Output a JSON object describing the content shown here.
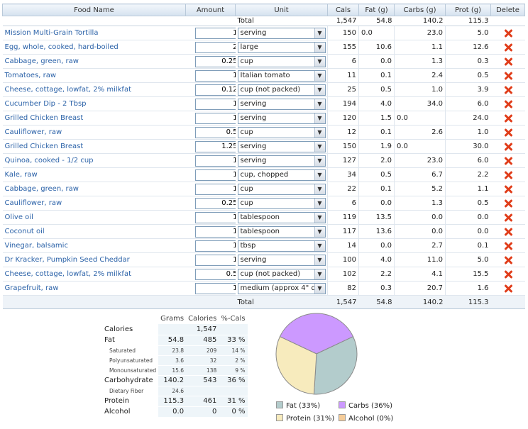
{
  "headers": {
    "food_name": "Food Name",
    "amount": "Amount",
    "unit": "Unit",
    "cals": "Cals",
    "fat": "Fat (g)",
    "carbs": "Carbs (g)",
    "prot": "Prot (g)",
    "delete": "Delete"
  },
  "totals": {
    "label": "Total",
    "cals": "1,547",
    "fat": "54.8",
    "carbs": "140.2",
    "prot": "115.3"
  },
  "foods": [
    {
      "name": "Mission Multi-Grain Tortilla",
      "amount": "1",
      "unit": "serving",
      "cals": "150",
      "fat": "0.0",
      "fat_left": true,
      "carbs": "23.0",
      "carbs_left": false,
      "prot": "5.0"
    },
    {
      "name": "Egg, whole, cooked, hard-boiled",
      "amount": "2",
      "unit": "large",
      "cals": "155",
      "fat": "10.6",
      "fat_left": false,
      "carbs": "1.1",
      "carbs_left": false,
      "prot": "12.6"
    },
    {
      "name": "Cabbage, green, raw",
      "amount": "0.25",
      "unit": "cup",
      "cals": "6",
      "fat": "0.0",
      "fat_left": false,
      "carbs": "1.3",
      "carbs_left": false,
      "prot": "0.3"
    },
    {
      "name": "Tomatoes, raw",
      "amount": "1",
      "unit": "Italian tomato",
      "cals": "11",
      "fat": "0.1",
      "fat_left": false,
      "carbs": "2.4",
      "carbs_left": false,
      "prot": "0.5"
    },
    {
      "name": "Cheese, cottage, lowfat, 2% milkfat",
      "amount": "0.12",
      "unit": "cup (not packed)",
      "cals": "25",
      "fat": "0.5",
      "fat_left": false,
      "carbs": "1.0",
      "carbs_left": false,
      "prot": "3.9"
    },
    {
      "name": "Cucumber Dip - 2 Tbsp",
      "amount": "1",
      "unit": "serving",
      "cals": "194",
      "fat": "4.0",
      "fat_left": false,
      "carbs": "34.0",
      "carbs_left": false,
      "prot": "6.0"
    },
    {
      "name": "Grilled Chicken Breast",
      "amount": "1",
      "unit": "serving",
      "cals": "120",
      "fat": "1.5",
      "fat_left": false,
      "carbs": "0.0",
      "carbs_left": true,
      "prot": "24.0"
    },
    {
      "name": "Cauliflower, raw",
      "amount": "0.5",
      "unit": "cup",
      "cals": "12",
      "fat": "0.1",
      "fat_left": false,
      "carbs": "2.6",
      "carbs_left": false,
      "prot": "1.0"
    },
    {
      "name": "Grilled Chicken Breast",
      "amount": "1.25",
      "unit": "serving",
      "cals": "150",
      "fat": "1.9",
      "fat_left": false,
      "carbs": "0.0",
      "carbs_left": true,
      "prot": "30.0"
    },
    {
      "name": "Quinoa, cooked - 1/2 cup",
      "amount": "1",
      "unit": "serving",
      "cals": "127",
      "fat": "2.0",
      "fat_left": false,
      "carbs": "23.0",
      "carbs_left": false,
      "prot": "6.0"
    },
    {
      "name": "Kale, raw",
      "amount": "1",
      "unit": "cup, chopped",
      "cals": "34",
      "fat": "0.5",
      "fat_left": false,
      "carbs": "6.7",
      "carbs_left": false,
      "prot": "2.2"
    },
    {
      "name": "Cabbage, green, raw",
      "amount": "1",
      "unit": "cup",
      "cals": "22",
      "fat": "0.1",
      "fat_left": false,
      "carbs": "5.2",
      "carbs_left": false,
      "prot": "1.1"
    },
    {
      "name": "Cauliflower, raw",
      "amount": "0.25",
      "unit": "cup",
      "cals": "6",
      "fat": "0.0",
      "fat_left": false,
      "carbs": "1.3",
      "carbs_left": false,
      "prot": "0.5"
    },
    {
      "name": "Olive oil",
      "amount": "1",
      "unit": "tablespoon",
      "cals": "119",
      "fat": "13.5",
      "fat_left": false,
      "carbs": "0.0",
      "carbs_left": false,
      "prot": "0.0"
    },
    {
      "name": "Coconut oil",
      "amount": "1",
      "unit": "tablespoon",
      "cals": "117",
      "fat": "13.6",
      "fat_left": false,
      "carbs": "0.0",
      "carbs_left": false,
      "prot": "0.0"
    },
    {
      "name": "Vinegar, balsamic",
      "amount": "1",
      "unit": "tbsp",
      "cals": "14",
      "fat": "0.0",
      "fat_left": false,
      "carbs": "2.7",
      "carbs_left": false,
      "prot": "0.1"
    },
    {
      "name": "Dr Kracker, Pumpkin Seed Cheddar",
      "amount": "1",
      "unit": "serving",
      "cals": "100",
      "fat": "4.0",
      "fat_left": false,
      "carbs": "11.0",
      "carbs_left": false,
      "prot": "5.0"
    },
    {
      "name": "Cheese, cottage, lowfat, 2% milkfat",
      "amount": "0.5",
      "unit": "cup (not packed)",
      "cals": "102",
      "fat": "2.2",
      "fat_left": false,
      "carbs": "4.1",
      "carbs_left": false,
      "prot": "15.5"
    },
    {
      "name": "Grapefruit, raw",
      "amount": "1",
      "unit": "medium (approx 4\" d",
      "cals": "82",
      "fat": "0.3",
      "fat_left": false,
      "carbs": "20.7",
      "carbs_left": false,
      "prot": "1.6"
    }
  ],
  "summary": {
    "headers": [
      "Grams",
      "Calories",
      "%-Cals"
    ],
    "rows": [
      {
        "label": "Calories",
        "grams": "",
        "cals": "1,547",
        "pct": "",
        "sub": false
      },
      {
        "label": "Fat",
        "grams": "54.8",
        "cals": "485",
        "pct": "33 %",
        "sub": false
      },
      {
        "label": "Saturated",
        "grams": "23.8",
        "cals": "209",
        "pct": "14 %",
        "sub": true
      },
      {
        "label": "Polyunsaturated",
        "grams": "3.6",
        "cals": "32",
        "pct": "2 %",
        "sub": true
      },
      {
        "label": "Monounsaturated",
        "grams": "15.6",
        "cals": "138",
        "pct": "9 %",
        "sub": true
      },
      {
        "label": "Carbohydrate",
        "grams": "140.2",
        "cals": "543",
        "pct": "36 %",
        "sub": false
      },
      {
        "label": "Dietary Fiber",
        "grams": "24.6",
        "cals": "",
        "pct": "",
        "sub": true
      },
      {
        "label": "Protein",
        "grams": "115.3",
        "cals": "461",
        "pct": "31 %",
        "sub": false
      },
      {
        "label": "Alcohol",
        "grams": "0.0",
        "cals": "0",
        "pct": "0 %",
        "sub": false
      }
    ]
  },
  "chart_data": {
    "type": "pie",
    "categories": [
      "Carbs",
      "Fat",
      "Protein",
      "Alcohol"
    ],
    "values": [
      36,
      33,
      31,
      0
    ],
    "colors": [
      "#cc99ff",
      "#b3cccc",
      "#f7ebbd",
      "#f5cc99"
    ],
    "legend": [
      {
        "label": "Fat (33%)",
        "color": "#b3cccc"
      },
      {
        "label": "Carbs (36%)",
        "color": "#cc99ff"
      },
      {
        "label": "Protein (31%)",
        "color": "#f7ebbd"
      },
      {
        "label": "Alcohol (0%)",
        "color": "#f5cc99"
      }
    ],
    "legend_placement": "bottom"
  }
}
